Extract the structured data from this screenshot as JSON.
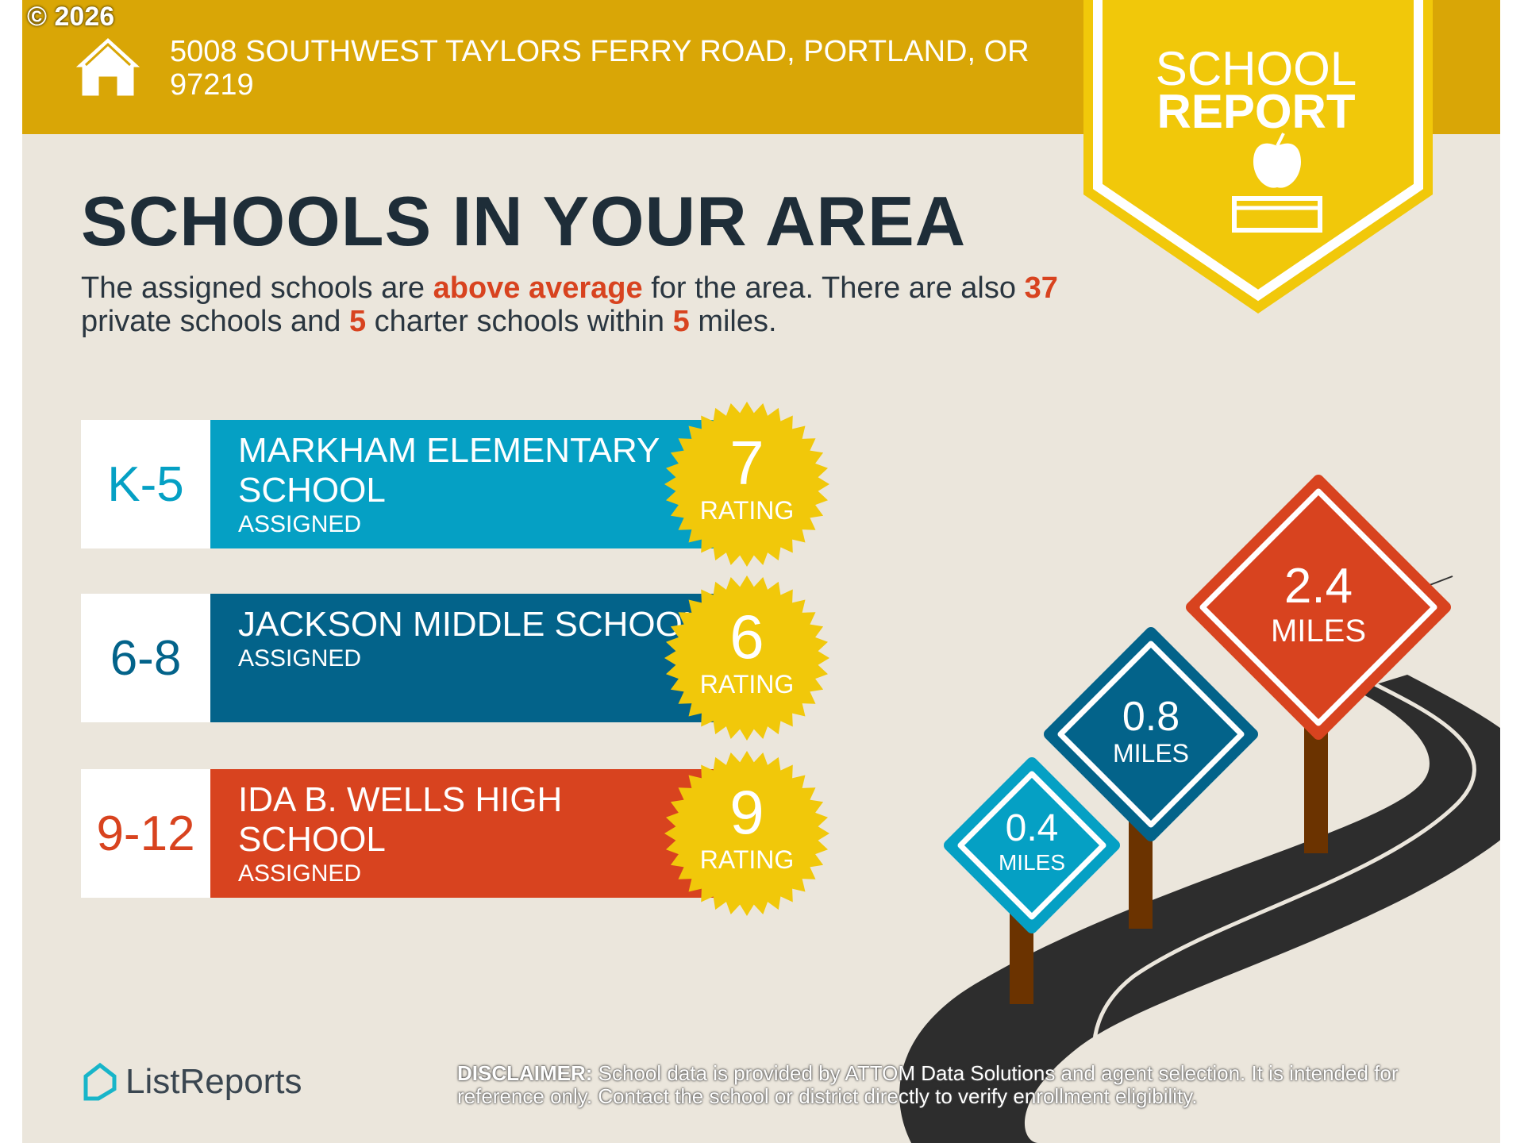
{
  "copyright": "© 2026",
  "header": {
    "address": "5008 SOUTHWEST TAYLORS FERRY ROAD, PORTLAND, OR 97219",
    "icon": "house-icon"
  },
  "badge": {
    "line1": "SCHOOL",
    "line2": "REPORT",
    "icon": "apple-on-book-icon"
  },
  "title": "SCHOOLS IN YOUR AREA",
  "summary": {
    "p1": "The assigned schools are ",
    "h1": "above average",
    "p2": " for the area. There are also ",
    "h2": "37",
    "p3": " private schools and ",
    "h3": "5",
    "p4": " charter schools within ",
    "h4": "5",
    "p5": " miles."
  },
  "schools": [
    {
      "grade": "K-5",
      "name": "MARKHAM ELEMENTARY SCHOOL",
      "status": "ASSIGNED",
      "rating": "7",
      "rating_label": "RATING",
      "color": "#05a0c4"
    },
    {
      "grade": "6-8",
      "name": "JACKSON MIDDLE SCHOOL",
      "status": "ASSIGNED",
      "rating": "6",
      "rating_label": "RATING",
      "color": "#03638a"
    },
    {
      "grade": "9-12",
      "name": "IDA B. WELLS HIGH SCHOOL",
      "status": "ASSIGNED",
      "rating": "9",
      "rating_label": "RATING",
      "color": "#d8431f"
    }
  ],
  "signs": [
    {
      "distance": "0.4",
      "unit": "MILES",
      "color": "#05a0c4"
    },
    {
      "distance": "0.8",
      "unit": "MILES",
      "color": "#03638a"
    },
    {
      "distance": "2.4",
      "unit": "MILES",
      "color": "#d8431f"
    }
  ],
  "footer": {
    "logo": "ListReports",
    "disclaimer_label": "DISCLAIMER:",
    "disclaimer": " School data is provided by ATTOM Data Solutions and agent selection. It is intended for reference only. Contact the school or district directly to verify enrollment eligibility."
  }
}
